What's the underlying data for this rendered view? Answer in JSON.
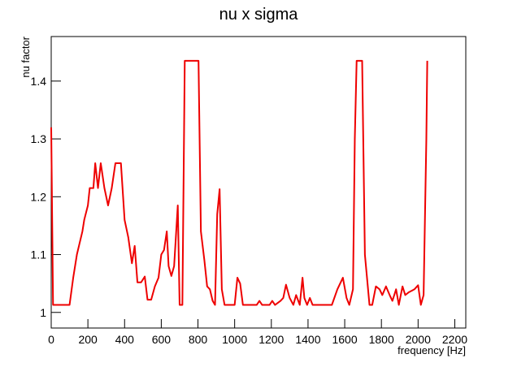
{
  "chart_data": {
    "type": "line",
    "title": "nu x sigma",
    "x_label": "frequency [Hz]",
    "y_label": "nu factor",
    "x": [
      0,
      10,
      100,
      120,
      140,
      170,
      180,
      200,
      210,
      230,
      240,
      255,
      270,
      290,
      310,
      330,
      350,
      380,
      400,
      420,
      440,
      455,
      470,
      490,
      510,
      525,
      545,
      565,
      585,
      600,
      615,
      630,
      640,
      655,
      670,
      690,
      700,
      715,
      728,
      748,
      803,
      816,
      835,
      850,
      865,
      880,
      893,
      905,
      918,
      930,
      945,
      1000,
      1015,
      1030,
      1045,
      1120,
      1135,
      1150,
      1190,
      1205,
      1220,
      1250,
      1265,
      1280,
      1300,
      1320,
      1335,
      1355,
      1370,
      1380,
      1395,
      1410,
      1425,
      1440,
      1455,
      1470,
      1530,
      1560,
      1590,
      1610,
      1625,
      1645,
      1655,
      1665,
      1695,
      1710,
      1735,
      1750,
      1770,
      1790,
      1805,
      1825,
      1845,
      1860,
      1880,
      1895,
      1915,
      1930,
      1950,
      1980,
      2000,
      2015,
      2030,
      2045,
      2050
    ],
    "color": "#ee0000",
    "values": [
      1.32,
      1.013,
      1.013,
      1.06,
      1.1,
      1.14,
      1.16,
      1.185,
      1.215,
      1.215,
      1.258,
      1.215,
      1.258,
      1.215,
      1.185,
      1.215,
      1.258,
      1.258,
      1.16,
      1.13,
      1.085,
      1.115,
      1.052,
      1.052,
      1.062,
      1.022,
      1.022,
      1.045,
      1.06,
      1.1,
      1.108,
      1.14,
      1.08,
      1.063,
      1.08,
      1.185,
      1.013,
      1.013,
      1.435,
      1.435,
      1.435,
      1.14,
      1.09,
      1.045,
      1.04,
      1.02,
      1.013,
      1.17,
      1.213,
      1.04,
      1.013,
      1.013,
      1.06,
      1.05,
      1.013,
      1.013,
      1.02,
      1.013,
      1.013,
      1.02,
      1.013,
      1.02,
      1.025,
      1.048,
      1.025,
      1.013,
      1.03,
      1.013,
      1.06,
      1.025,
      1.013,
      1.025,
      1.013,
      1.013,
      1.013,
      1.013,
      1.013,
      1.04,
      1.06,
      1.025,
      1.013,
      1.04,
      1.3,
      1.435,
      1.435,
      1.1,
      1.013,
      1.013,
      1.045,
      1.04,
      1.03,
      1.045,
      1.03,
      1.02,
      1.04,
      1.013,
      1.045,
      1.03,
      1.035,
      1.04,
      1.047,
      1.013,
      1.03,
      1.3,
      1.435
    ],
    "xlim": [
      0,
      2260
    ],
    "ylim": [
      0.973,
      1.477
    ],
    "xticks": [
      0,
      200,
      400,
      600,
      800,
      1000,
      1200,
      1400,
      1600,
      1800,
      2000,
      2200
    ],
    "yticks": [
      1,
      1.1,
      1.2,
      1.3,
      1.4
    ]
  }
}
